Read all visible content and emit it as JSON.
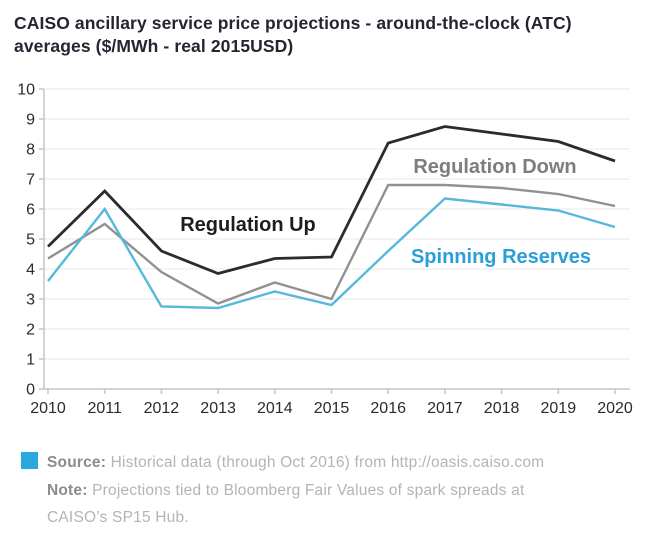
{
  "title": "CAISO ancillary service price projections - around-the-clock (ATC)\naverages ($/MWh - real 2015USD)",
  "chart_data": {
    "type": "line",
    "title": "CAISO ancillary service price projections - around-the-clock (ATC) averages ($/MWh - real 2015USD)",
    "xlabel": "",
    "ylabel": "",
    "x": [
      2010,
      2011,
      2012,
      2013,
      2014,
      2015,
      2016,
      2017,
      2018,
      2019,
      2020
    ],
    "ylim": [
      0,
      10
    ],
    "ytick_step": 1,
    "grid": true,
    "legend_position": "inline-annotations",
    "series": [
      {
        "name": "Regulation Down",
        "color": "#919191",
        "label_color": "#7d7d7d",
        "values": [
          4.35,
          5.5,
          3.9,
          2.85,
          3.55,
          3.0,
          6.8,
          6.8,
          6.7,
          6.5,
          6.1
        ],
        "label_pos": {
          "x": 495,
          "y": 91
        }
      },
      {
        "name": "Regulation Up",
        "color": "#2b2a2e",
        "label_color": "#1d1c20",
        "values": [
          4.75,
          6.6,
          4.6,
          3.85,
          4.35,
          4.4,
          8.2,
          8.75,
          8.5,
          8.25,
          7.6
        ],
        "label_pos": {
          "x": 248,
          "y": 149
        }
      },
      {
        "name": "Spinning Reserves",
        "color": "#56b8da",
        "label_color": "#2b9fd8",
        "values": [
          3.6,
          6.0,
          2.75,
          2.7,
          3.25,
          2.8,
          4.6,
          6.35,
          6.15,
          5.95,
          5.4
        ],
        "label_pos": {
          "x": 501,
          "y": 181
        }
      }
    ],
    "axis_color": "#c6c6c6",
    "grid_color": "#ededed",
    "tick_label_color": "#2b2b2b"
  },
  "footer": {
    "bullet_color": "#29a8df",
    "source_label": "Source:",
    "source_text": " Historical data (through Oct 2016) from http://oasis.caiso.com",
    "note_label": "Note:",
    "note_text": " Projections tied to Bloomberg Fair Values of spark spreads at",
    "note_text2": "CAISO’s SP15 Hub."
  }
}
